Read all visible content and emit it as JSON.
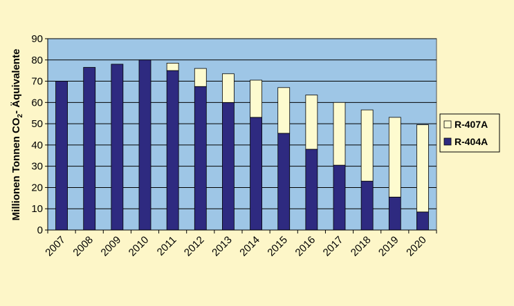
{
  "chart_data": {
    "type": "bar",
    "stacked": true,
    "categories": [
      "2007",
      "2008",
      "2009",
      "2010",
      "2011",
      "2012",
      "2013",
      "2014",
      "2015",
      "2016",
      "2017",
      "2018",
      "2019",
      "2020"
    ],
    "series": [
      {
        "name": "R-404A",
        "color": "#2e2a80",
        "values": [
          70,
          76.5,
          78,
          80,
          75,
          67.5,
          60,
          53,
          45.5,
          38,
          30.5,
          23,
          15.5,
          8.5
        ]
      },
      {
        "name": "R-407A",
        "color": "#fdfbcf",
        "values": [
          0,
          0,
          0,
          0,
          3.5,
          8.5,
          13.5,
          17.5,
          21.5,
          25.5,
          29.5,
          33.5,
          37.5,
          41
        ]
      }
    ],
    "title": "",
    "xlabel": "",
    "ylabel_parts": {
      "main": "Millionen Tonnen CO",
      "sub": "2",
      "rest": "- Äquivalente"
    },
    "ylim": [
      0,
      90
    ],
    "yticks": [
      0,
      10,
      20,
      30,
      40,
      50,
      60,
      70,
      80,
      90
    ],
    "grid": true,
    "plot_background": "#9ec6e6",
    "legend": {
      "placement": "right",
      "entries": [
        "R-407A",
        "R-404A"
      ]
    }
  }
}
